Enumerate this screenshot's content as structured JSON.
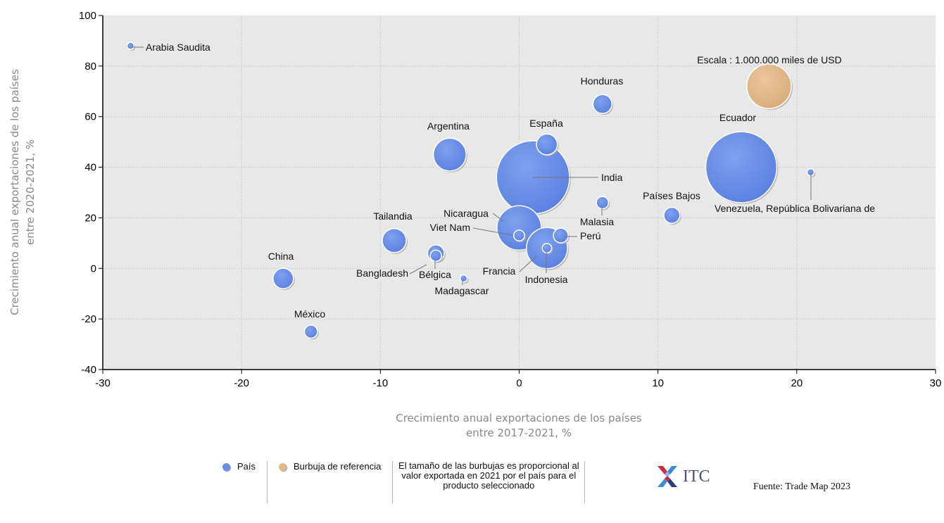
{
  "chart_data": {
    "type": "scatter",
    "xlabel_lines": [
      "Crecimiento anual exportaciones de los países",
      "entre 2017-2021, %"
    ],
    "ylabel_lines": [
      "Crecimiento anual exportaciones de los países",
      "entre 2020-2021, %"
    ],
    "xlim": [
      -30,
      30
    ],
    "ylim": [
      -40,
      100
    ],
    "x_ticks": [
      -30,
      -20,
      -10,
      0,
      10,
      20,
      30
    ],
    "y_ticks": [
      -40,
      -20,
      0,
      20,
      40,
      60,
      80,
      100
    ],
    "grid": true,
    "colors": {
      "country": "#6a8fe8",
      "reference": "#e3b98a"
    },
    "points": [
      {
        "label": "Arabia Saudita",
        "x": -28,
        "y": 88,
        "size": 15000
      },
      {
        "label": "Honduras",
        "x": 6,
        "y": 65,
        "size": 180000
      },
      {
        "label": "Argentina",
        "x": -5,
        "y": 45,
        "size": 540000
      },
      {
        "label": "España",
        "x": 2,
        "y": 49,
        "size": 220000
      },
      {
        "label": "India",
        "x": 1,
        "y": 36,
        "size": 2700000
      },
      {
        "label": "Ecuador",
        "x": 16,
        "y": 40,
        "size": 2550000
      },
      {
        "label": "Venezuela, República Bolivariana de",
        "x": 21,
        "y": 38,
        "size": 15000
      },
      {
        "label": "Países Bajos",
        "x": 11,
        "y": 21,
        "size": 130000
      },
      {
        "label": "Malasia",
        "x": 6,
        "y": 26,
        "size": 75000
      },
      {
        "label": "Nicaragua",
        "x": 0,
        "y": 16,
        "size": 1000000
      },
      {
        "label": "Viet Nam",
        "x": 0,
        "y": 13,
        "size": 60000
      },
      {
        "label": "Perú",
        "x": 3,
        "y": 13,
        "size": 110000
      },
      {
        "label": "Francia",
        "x": 2,
        "y": 8,
        "size": 850000
      },
      {
        "label": "Indonesia",
        "x": 2,
        "y": 8,
        "size": 45000
      },
      {
        "label": "Tailandia",
        "x": -9,
        "y": 11,
        "size": 290000
      },
      {
        "label": "Bangladesh",
        "x": -6,
        "y": 6,
        "size": 140000
      },
      {
        "label": "Bélgica",
        "x": -6,
        "y": 5,
        "size": 65000
      },
      {
        "label": "Madagascar",
        "x": -4,
        "y": -4,
        "size": 25000
      },
      {
        "label": "China",
        "x": -17,
        "y": -4,
        "size": 210000
      },
      {
        "label": "México",
        "x": -15,
        "y": -25,
        "size": 85000
      }
    ],
    "reference": {
      "label": "Escala : 1.000.000 miles de USD",
      "x": 18,
      "y": 72,
      "size": 1000000
    }
  },
  "legend": {
    "country": "País",
    "reference": "Burbuja de referencia",
    "note": "El tamaño de las burbujas es proporcional al valor exportada en 2021 por el país para el producto seleccionado"
  },
  "logo": {
    "text": "ITC"
  },
  "source": "Fuente: Trade Map 2023"
}
